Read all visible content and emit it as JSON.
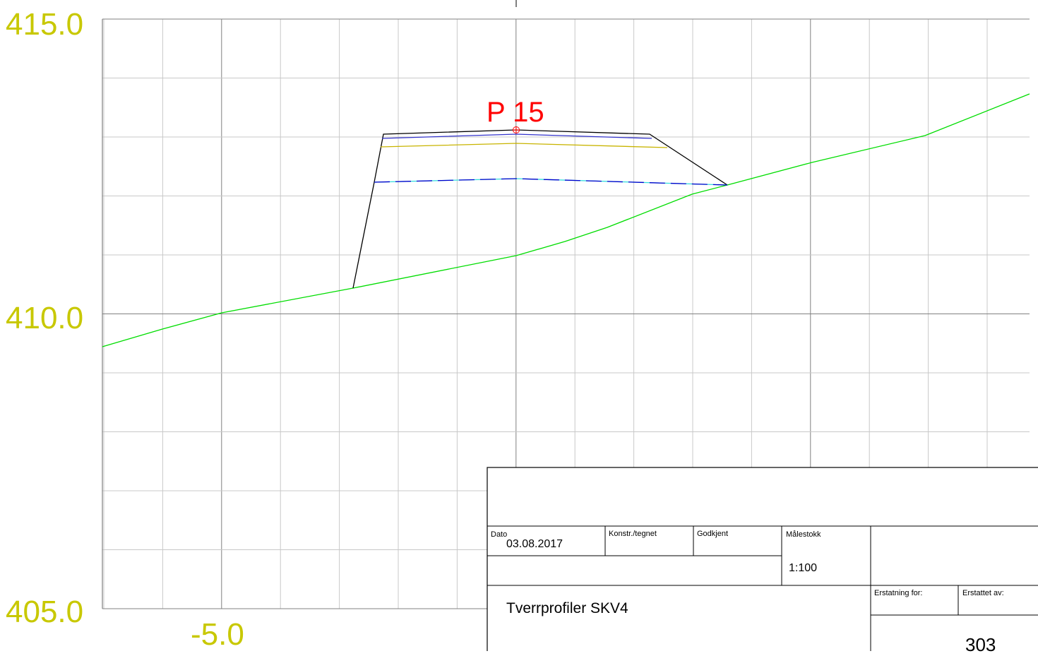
{
  "axis": {
    "y_labels": [
      "415.0",
      "410.0",
      "405.0"
    ],
    "x_labels": [
      "-5.0"
    ]
  },
  "point_label": "P 15",
  "colors": {
    "axis_label": "#c8c800",
    "terrain": "#00dd00",
    "grid_minor": "#c8c8c8",
    "grid_major": "#808080",
    "profile_top": "#000000",
    "layer_blue": "#3333cc",
    "layer_yellow": "#c8b400",
    "layer_dashed": "#0000cc",
    "point": "#ff0000"
  },
  "title_block": {
    "dato_label": "Dato",
    "dato_value": "03.08.2017",
    "konstr_label": "Konstr./tegnet",
    "godkjent_label": "Godkjent",
    "malestokk_label": "Målestokk",
    "malestokk_value": "1:100",
    "title": "Tverrprofiler SKV4",
    "erstatning_for_label": "Erstatning for:",
    "erstattet_av_label": "Erstattet av:",
    "drawing_number": "303"
  }
}
